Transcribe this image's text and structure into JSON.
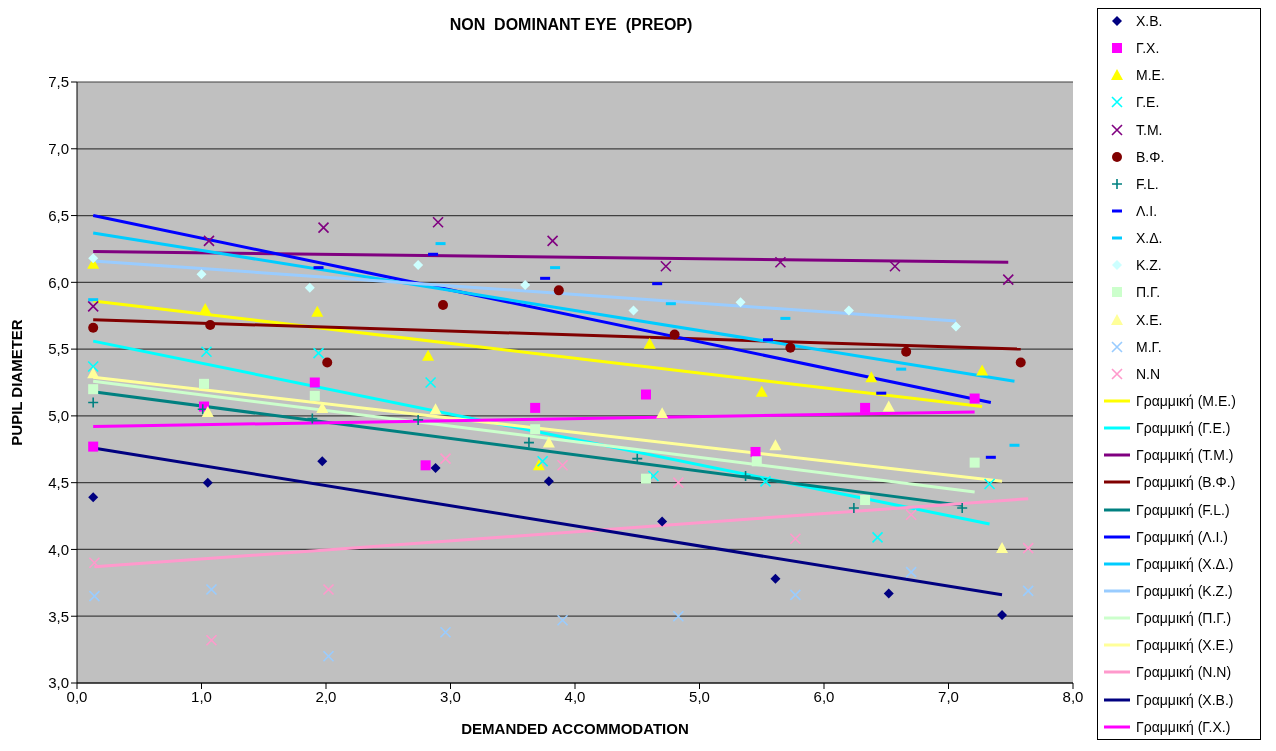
{
  "chart_data": {
    "type": "scatter",
    "title": "NON  DOMINANT EYE  (PREOP)",
    "xlabel": "DEMANDED  ACCOMMODATION",
    "ylabel": "PUPIL DIAMETER",
    "xlim": [
      0,
      8
    ],
    "ylim": [
      3,
      7.5
    ],
    "xticks": [
      {
        "value": 0,
        "label": "0,0"
      },
      {
        "value": 1,
        "label": "1,0"
      },
      {
        "value": 2,
        "label": "2,0"
      },
      {
        "value": 3,
        "label": "3,0"
      },
      {
        "value": 4,
        "label": "4,0"
      },
      {
        "value": 5,
        "label": "5,0"
      },
      {
        "value": 6,
        "label": "6,0"
      },
      {
        "value": 7,
        "label": "7,0"
      },
      {
        "value": 8,
        "label": "8,0"
      }
    ],
    "yticks": [
      {
        "value": 3,
        "label": "3,0"
      },
      {
        "value": 3.5,
        "label": "3,5"
      },
      {
        "value": 4,
        "label": "4,0"
      },
      {
        "value": 4.5,
        "label": "4,5"
      },
      {
        "value": 5,
        "label": "5,0"
      },
      {
        "value": 5.5,
        "label": "5,5"
      },
      {
        "value": 6,
        "label": "6,0"
      },
      {
        "value": 6.5,
        "label": "6,5"
      },
      {
        "value": 7,
        "label": "7,0"
      },
      {
        "value": 7.5,
        "label": "7,5"
      }
    ],
    "grid": "y",
    "legend": "right",
    "series": [
      {
        "name": "Χ.Β.",
        "marker": "diamond",
        "color": "#000080",
        "x": [
          0.13,
          1.05,
          1.97,
          2.88,
          3.79,
          4.7,
          5.61,
          6.52,
          7.43
        ],
        "values": [
          4.39,
          4.5,
          4.66,
          4.61,
          4.51,
          4.21,
          3.78,
          3.67,
          3.51
        ]
      },
      {
        "name": "Γ.Χ.",
        "marker": "square",
        "color": "#ff00ff",
        "x": [
          0.13,
          1.02,
          1.91,
          2.8,
          3.68,
          4.57,
          5.45,
          6.33,
          7.21
        ],
        "values": [
          4.77,
          5.07,
          5.25,
          4.63,
          5.06,
          5.16,
          4.73,
          5.06,
          5.13
        ]
      },
      {
        "name": "Μ.Ε.",
        "marker": "triangle",
        "color": "#ffff00",
        "x": [
          0.13,
          1.03,
          1.93,
          2.82,
          3.71,
          4.6,
          5.5,
          6.38,
          7.27
        ],
        "values": [
          6.14,
          5.8,
          5.78,
          5.45,
          4.63,
          5.54,
          5.18,
          5.29,
          5.34
        ]
      },
      {
        "name": "Γ.Ε.",
        "marker": "cross",
        "color": "#00ffff",
        "x": [
          0.13,
          1.04,
          1.94,
          2.84,
          3.74,
          4.63,
          5.53,
          6.43,
          7.33
        ],
        "values": [
          5.37,
          5.48,
          5.47,
          5.25,
          4.66,
          4.55,
          4.51,
          4.09,
          4.49
        ]
      },
      {
        "name": "Τ.Μ.",
        "marker": "cross",
        "color": "#800080",
        "x": [
          0.13,
          1.06,
          1.98,
          2.9,
          3.82,
          4.73,
          5.65,
          6.57,
          7.48
        ],
        "values": [
          5.82,
          6.31,
          6.41,
          6.45,
          6.31,
          6.12,
          6.15,
          6.12,
          6.02
        ]
      },
      {
        "name": "Β.Φ.",
        "marker": "circle",
        "color": "#800000",
        "x": [
          0.13,
          1.07,
          2.01,
          2.94,
          3.87,
          4.8,
          5.73,
          6.66,
          7.58
        ],
        "values": [
          5.66,
          5.68,
          5.4,
          5.83,
          5.94,
          5.61,
          5.51,
          5.48,
          5.4
        ]
      },
      {
        "name": "F.L.",
        "marker": "plus",
        "color": "#008080",
        "x": [
          0.13,
          1.01,
          1.89,
          2.74,
          3.63,
          4.5,
          5.37,
          6.24,
          7.11
        ],
        "values": [
          5.1,
          5.05,
          4.98,
          4.97,
          4.8,
          4.68,
          4.55,
          4.31,
          4.31
        ]
      },
      {
        "name": "Λ.Ι.",
        "color": "#0000ff",
        "x": [
          1.94,
          2.86,
          3.76,
          4.66,
          5.55,
          6.46,
          7.34
        ],
        "values": [
          6.11,
          6.21,
          6.03,
          5.99,
          5.57,
          5.17,
          4.69
        ]
      },
      {
        "name": "Χ.Δ.",
        "color": "#00ccff",
        "x": [
          0.13,
          2.92,
          3.84,
          4.77,
          5.69,
          6.62,
          7.53
        ],
        "values": [
          5.87,
          6.29,
          6.11,
          5.84,
          5.73,
          5.35,
          4.78
        ]
      },
      {
        "name": "Κ.Ζ.",
        "marker": "diamond",
        "color": "#ccffff",
        "x": [
          0.13,
          1.0,
          1.87,
          2.74,
          3.6,
          4.47,
          5.33,
          6.2,
          7.06
        ],
        "values": [
          6.18,
          6.06,
          5.96,
          6.13,
          5.98,
          5.79,
          5.85,
          5.79,
          5.67
        ]
      },
      {
        "name": "Π.Γ.",
        "marker": "square",
        "color": "#ccffcc",
        "x": [
          0.13,
          1.02,
          1.91,
          3.68,
          4.57,
          5.46,
          6.33,
          7.21
        ],
        "values": [
          5.2,
          5.24,
          5.15,
          4.9,
          4.53,
          4.66,
          4.37,
          4.65
        ]
      },
      {
        "name": "Χ.Ε.",
        "marker": "triangle",
        "color": "#ffff99",
        "x": [
          0.13,
          1.05,
          1.97,
          2.88,
          3.79,
          4.7,
          5.61,
          6.52,
          7.43
        ],
        "values": [
          5.32,
          5.03,
          5.06,
          5.05,
          4.8,
          5.02,
          4.78,
          5.07,
          4.01
        ]
      },
      {
        "name": "Μ.Γ.",
        "marker": "cross",
        "color": "#99ccff",
        "x": [
          0.14,
          1.08,
          2.02,
          2.96,
          3.9,
          4.83,
          5.77,
          6.7,
          7.64
        ],
        "values": [
          3.65,
          3.7,
          3.2,
          3.38,
          3.47,
          3.5,
          3.66,
          3.83,
          3.69
        ]
      },
      {
        "name": "Ν.Ν",
        "marker": "cross",
        "color": "#ff99cc",
        "x": [
          0.14,
          1.08,
          2.02,
          2.96,
          3.9,
          4.83,
          5.77,
          6.7,
          7.64
        ],
        "values": [
          3.9,
          3.32,
          3.7,
          4.68,
          4.63,
          4.5,
          4.08,
          4.26,
          4.01
        ]
      },
      {
        "name": "Γραμμική (Μ.Ε.)",
        "type": "line",
        "color": "#ffff00",
        "x": [
          0.13,
          7.27
        ],
        "values": [
          5.86,
          5.07
        ]
      },
      {
        "name": "Γραμμική (Γ.Ε.)",
        "type": "line",
        "color": "#00ffff",
        "x": [
          0.13,
          7.33
        ],
        "values": [
          5.56,
          4.19
        ]
      },
      {
        "name": "Γραμμική (Τ.Μ.)",
        "type": "line",
        "color": "#800080",
        "x": [
          0.13,
          7.48
        ],
        "values": [
          6.23,
          6.15
        ]
      },
      {
        "name": "Γραμμική (Β.Φ.)",
        "type": "line",
        "color": "#800000",
        "x": [
          0.13,
          7.58
        ],
        "values": [
          5.72,
          5.5
        ]
      },
      {
        "name": "Γραμμική (F.L.)",
        "type": "line",
        "color": "#008080",
        "x": [
          0.13,
          7.11
        ],
        "values": [
          5.18,
          4.33
        ]
      },
      {
        "name": "Γραμμική (Λ.Ι.)",
        "type": "line",
        "color": "#0000ff",
        "x": [
          0.13,
          7.34
        ],
        "values": [
          6.5,
          5.1
        ]
      },
      {
        "name": "Γραμμική (Χ.Δ.)",
        "type": "line",
        "color": "#00ccff",
        "x": [
          0.13,
          7.53
        ],
        "values": [
          6.37,
          5.26
        ]
      },
      {
        "name": "Γραμμική (Κ.Ζ.)",
        "type": "line",
        "color": "#99ccff",
        "x": [
          0.13,
          7.06
        ],
        "values": [
          6.16,
          5.71
        ]
      },
      {
        "name": "Γραμμική (Π.Γ.)",
        "type": "line",
        "color": "#ccffcc",
        "x": [
          0.13,
          7.21
        ],
        "values": [
          5.26,
          4.43
        ]
      },
      {
        "name": "Γραμμική (Χ.Ε.)",
        "type": "line",
        "color": "#ffff99",
        "x": [
          0.13,
          7.43
        ],
        "values": [
          5.29,
          4.51
        ]
      },
      {
        "name": "Γραμμική (Ν.Ν)",
        "type": "line",
        "color": "#ff99cc",
        "x": [
          0.14,
          7.64
        ],
        "values": [
          3.87,
          4.38
        ]
      },
      {
        "name": "Γραμμική (Χ.Β.)",
        "type": "line",
        "color": "#000080",
        "x": [
          0.13,
          7.43
        ],
        "values": [
          4.76,
          3.66
        ]
      },
      {
        "name": "Γραμμική (Γ.Χ.)",
        "type": "line",
        "color": "#ff00ff",
        "x": [
          0.13,
          7.21
        ],
        "values": [
          4.92,
          5.03
        ]
      }
    ]
  }
}
